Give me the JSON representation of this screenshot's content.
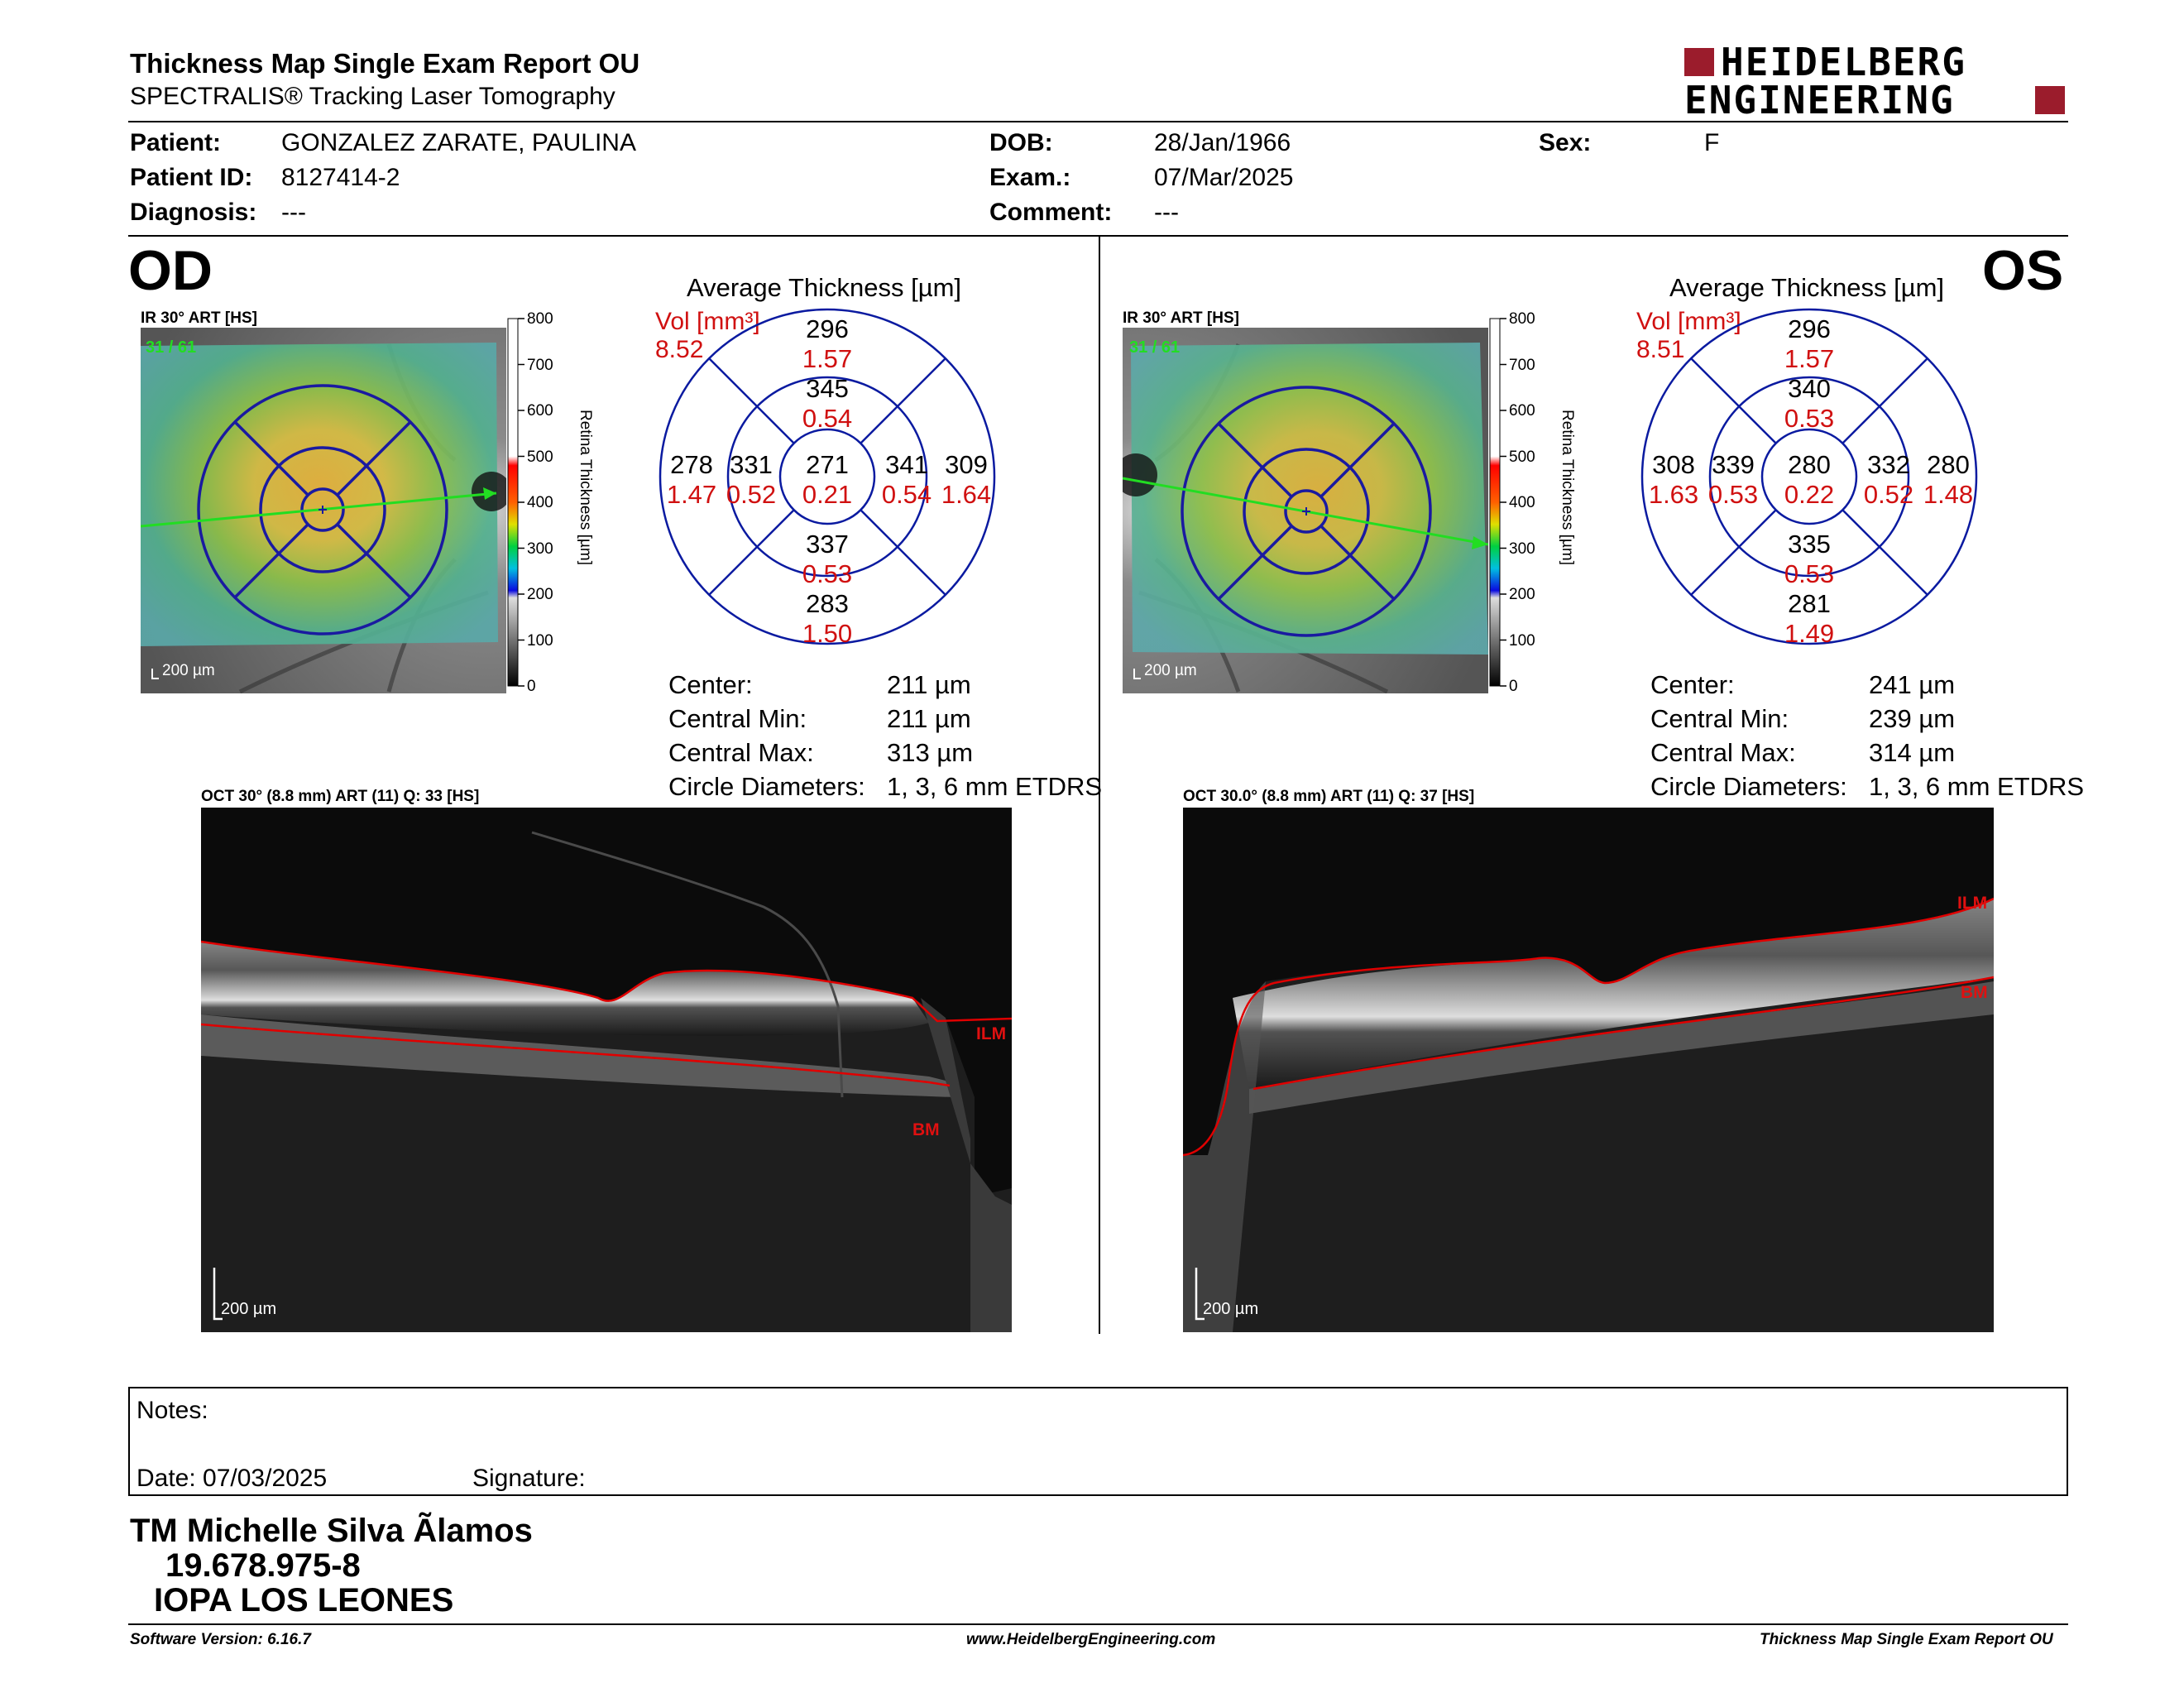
{
  "header": {
    "title": "Thickness Map Single Exam Report OU",
    "subtitle": "SPECTRALIS® Tracking Laser Tomography",
    "logo_line1": "HEIDELBERG",
    "logo_line2": "ENGINEERING"
  },
  "patient": {
    "patient_label": "Patient:",
    "patient_value": "GONZALEZ ZARATE, PAULINA",
    "patient_id_label": "Patient ID:",
    "patient_id_value": "8127414-2",
    "diagnosis_label": "Diagnosis:",
    "diagnosis_value": "---",
    "dob_label": "DOB:",
    "dob_value": "28/Jan/1966",
    "exam_label": "Exam.:",
    "exam_value": "07/Mar/2025",
    "comment_label": "Comment:",
    "comment_value": "---",
    "sex_label": "Sex:",
    "sex_value": "F"
  },
  "colorbar": {
    "ticks": [
      "800",
      "700",
      "600",
      "500",
      "400",
      "300",
      "200",
      "100",
      "0"
    ],
    "label": "Retina Thickness [µm]"
  },
  "od": {
    "eye": "OD",
    "ir_label": "IR 30° ART [HS]",
    "frame_count": "31 / 61",
    "scale_bar": "200 µm",
    "avg_title": "Average Thickness [µm]",
    "vol_label": "Vol [mm³]",
    "vol_value": "8.52",
    "grid": {
      "outer_top": "296",
      "outer_top_vol": "1.57",
      "inner_top": "345",
      "inner_top_vol": "0.54",
      "outer_left": "278",
      "outer_left_vol": "1.47",
      "inner_left": "331",
      "inner_left_vol": "0.52",
      "center": "271",
      "center_vol": "0.21",
      "inner_right": "341",
      "inner_right_vol": "0.54",
      "outer_right": "309",
      "outer_right_vol": "1.64",
      "inner_bottom": "337",
      "inner_bottom_vol": "0.53",
      "outer_bottom": "283",
      "outer_bottom_vol": "1.50"
    },
    "stats": [
      {
        "label": "Center:",
        "value": "211 µm"
      },
      {
        "label": "Central Min:",
        "value": "211 µm"
      },
      {
        "label": "Central Max:",
        "value": "313 µm"
      },
      {
        "label": "Circle Diameters:",
        "value": "1, 3, 6 mm ETDRS"
      }
    ],
    "oct_label": "OCT 30° (8.8 mm) ART (11) Q: 33 [HS]",
    "ilm": "ILM",
    "bm": "BM",
    "oct_scale": "200 µm"
  },
  "os": {
    "eye": "OS",
    "ir_label": "IR 30° ART [HS]",
    "frame_count": "31 / 61",
    "scale_bar": "200 µm",
    "avg_title": "Average Thickness [µm]",
    "vol_label": "Vol [mm³]",
    "vol_value": "8.51",
    "grid": {
      "outer_top": "296",
      "outer_top_vol": "1.57",
      "inner_top": "340",
      "inner_top_vol": "0.53",
      "outer_left": "308",
      "outer_left_vol": "1.63",
      "inner_left": "339",
      "inner_left_vol": "0.53",
      "center": "280",
      "center_vol": "0.22",
      "inner_right": "332",
      "inner_right_vol": "0.52",
      "outer_right": "280",
      "outer_right_vol": "1.48",
      "inner_bottom": "335",
      "inner_bottom_vol": "0.53",
      "outer_bottom": "281",
      "outer_bottom_vol": "1.49"
    },
    "stats": [
      {
        "label": "Center:",
        "value": "241 µm"
      },
      {
        "label": "Central Min:",
        "value": "239 µm"
      },
      {
        "label": "Central Max:",
        "value": "314 µm"
      },
      {
        "label": "Circle Diameters:",
        "value": "1, 3, 6 mm ETDRS"
      }
    ],
    "oct_label": "OCT 30.0° (8.8 mm) ART (11) Q: 37 [HS]",
    "ilm": "ILM",
    "bm": "BM",
    "oct_scale": "200 µm"
  },
  "notes": {
    "notes_label": "Notes:",
    "date_label": "Date: 07/03/2025",
    "signature_label": "Signature:"
  },
  "signature": {
    "name": "TM Michelle Silva Ãlamos",
    "rut": "19.678.975-8",
    "org": "IOPA LOS LEONES"
  },
  "footer": {
    "software": "Software Version: 6.16.7",
    "website": "www.HeidelbergEngineering.com",
    "report": "Thickness Map Single Exam Report OU"
  },
  "colors": {
    "accent_red": "#d01010",
    "logo_red": "#9b1c2c",
    "grid_blue": "#0a1aa0"
  }
}
